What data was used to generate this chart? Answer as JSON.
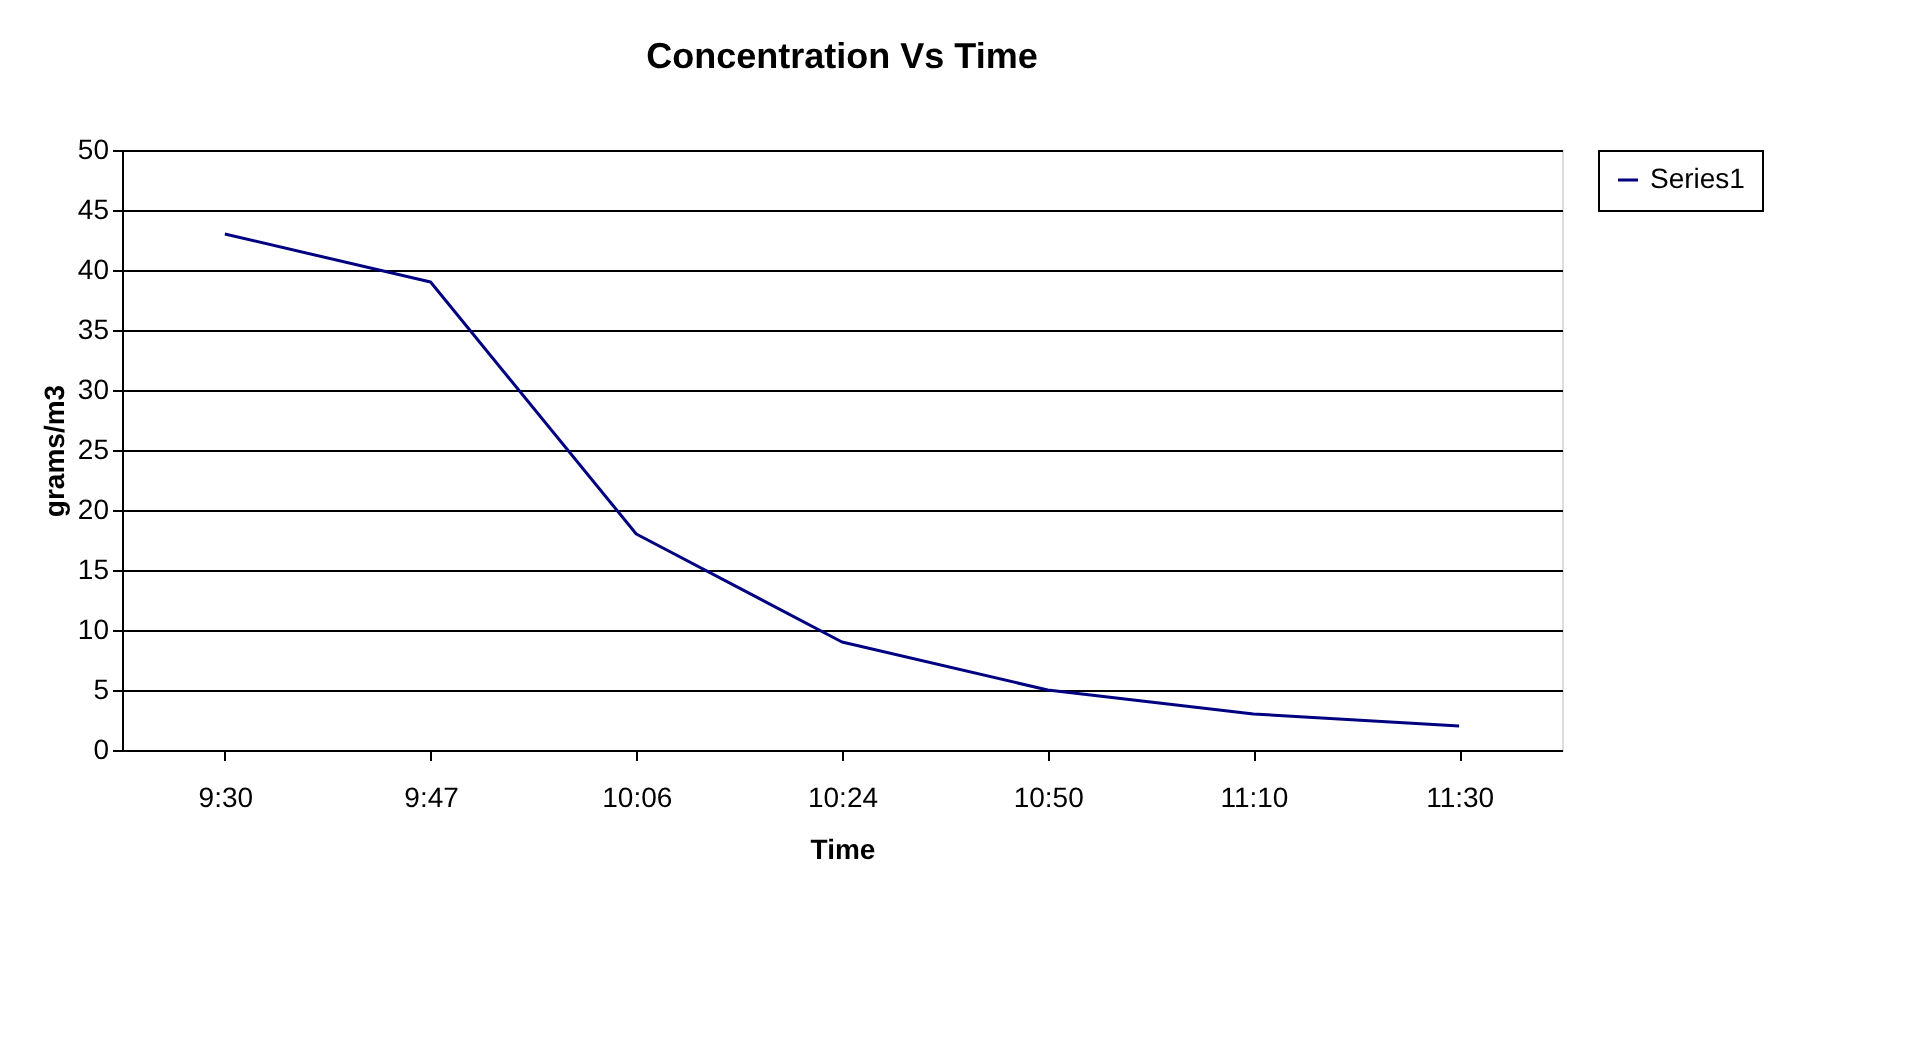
{
  "chart_data": {
    "type": "line",
    "title": "Concentration Vs Time",
    "xlabel": "Time",
    "ylabel": "grams/m3",
    "categories": [
      "9:30",
      "9:47",
      "10:06",
      "10:24",
      "10:50",
      "11:10",
      "11:30"
    ],
    "series": [
      {
        "name": "Series1",
        "color": "#000080",
        "values": [
          43,
          39,
          18,
          9,
          5,
          3,
          2
        ]
      }
    ],
    "ylim": [
      0,
      50
    ],
    "yticks": [
      0,
      5,
      10,
      15,
      20,
      25,
      30,
      35,
      40,
      45,
      50
    ],
    "grid": "y",
    "legend": "right",
    "marker": "none",
    "line_style": "solid"
  }
}
